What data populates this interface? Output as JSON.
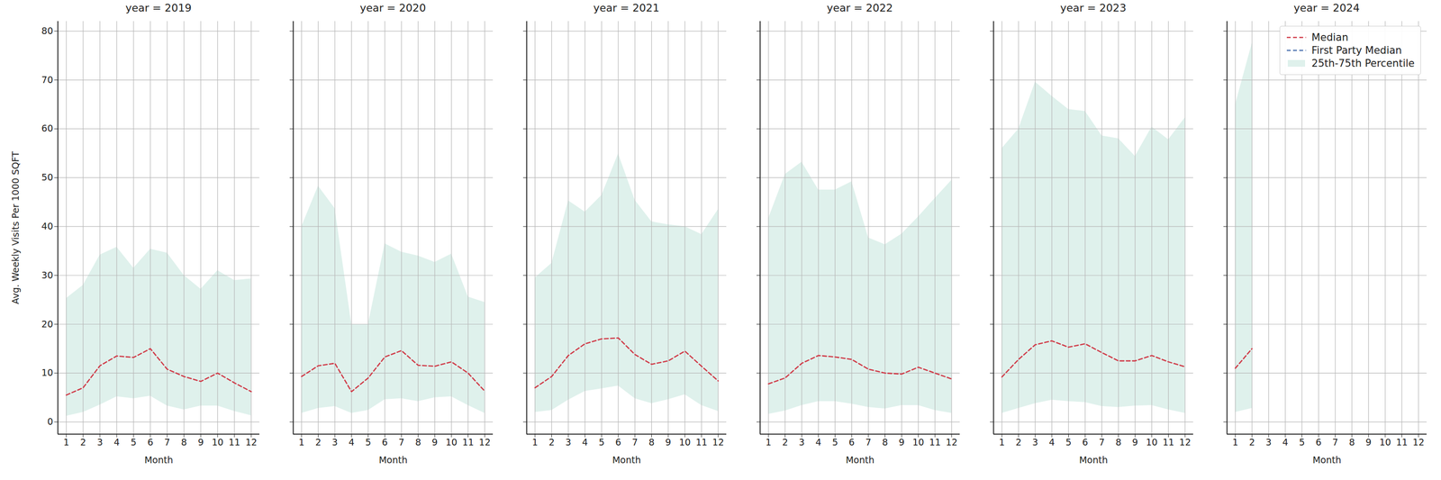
{
  "chart_data": [
    {
      "type": "line",
      "title": "year = 2019",
      "x_label": "Month",
      "y_label": "Avg. Weekly Visits Per 1000 SQFT",
      "tick_labels": true,
      "x": [
        1,
        2,
        3,
        4,
        5,
        6,
        7,
        8,
        9,
        10,
        11,
        12
      ],
      "xlim": [
        0.5,
        12.5
      ],
      "xticks": [
        1,
        2,
        3,
        4,
        5,
        6,
        7,
        8,
        9,
        10,
        11,
        12
      ],
      "ylim": [
        -2.5,
        82
      ],
      "yticks": [
        0,
        10,
        20,
        30,
        40,
        50,
        60,
        70,
        80
      ],
      "grid": true,
      "series": [
        {
          "name": "Median",
          "color": "#d03b48",
          "line_style": "dashed",
          "values": [
            5.5,
            7,
            11.5,
            13.5,
            13.2,
            15,
            10.8,
            9.3,
            8.3,
            10,
            8,
            6.2
          ]
        },
        {
          "name": "First Party Median",
          "color": "#4c72b0",
          "line_style": "dashed",
          "values": [
            null,
            null,
            null,
            null,
            null,
            null,
            null,
            null,
            null,
            null,
            null,
            null
          ]
        },
        {
          "name": "25th-75th Percentile",
          "type": "area",
          "color": "#dff1ec",
          "lower": [
            1.2,
            2,
            3.5,
            5.2,
            4.8,
            5.3,
            3.3,
            2.5,
            3.3,
            3.3,
            2.2,
            1.3
          ],
          "upper": [
            25.3,
            28,
            34.2,
            35.8,
            31.5,
            35.4,
            34.6,
            30,
            27.2,
            31,
            29,
            29.3
          ]
        }
      ]
    },
    {
      "type": "line",
      "title": "year = 2020",
      "x_label": "Month",
      "tick_labels": "x",
      "x": [
        1,
        2,
        3,
        4,
        5,
        6,
        7,
        8,
        9,
        10,
        11,
        12
      ],
      "xlim": [
        0.5,
        12.5
      ],
      "xticks": [
        1,
        2,
        3,
        4,
        5,
        6,
        7,
        8,
        9,
        10,
        11,
        12
      ],
      "ylim": [
        -2.5,
        82
      ],
      "yticks": [
        0,
        10,
        20,
        30,
        40,
        50,
        60,
        70,
        80
      ],
      "grid": true,
      "series": [
        {
          "name": "Median",
          "color": "#d03b48",
          "line_style": "dashed",
          "values": [
            9.3,
            11.5,
            12,
            6.2,
            9,
            13.3,
            14.6,
            11.6,
            11.4,
            12.3,
            10,
            6.3
          ]
        },
        {
          "name": "First Party Median",
          "color": "#4c72b0",
          "line_style": "dashed",
          "values": [
            null,
            null,
            null,
            null,
            null,
            null,
            null,
            null,
            null,
            null,
            null,
            null
          ]
        },
        {
          "name": "25th-75th Percentile",
          "type": "area",
          "color": "#dff1ec",
          "lower": [
            1.8,
            2.8,
            3.2,
            1.8,
            2.4,
            4.6,
            4.8,
            4.2,
            5,
            5.2,
            3.4,
            1.8
          ],
          "upper": [
            40,
            48.3,
            43.7,
            20,
            20,
            36.5,
            34.8,
            34,
            32.7,
            34.4,
            25.6,
            24.5
          ]
        }
      ]
    },
    {
      "type": "line",
      "title": "year = 2021",
      "x_label": "Month",
      "tick_labels": "x",
      "x": [
        1,
        2,
        3,
        4,
        5,
        6,
        7,
        8,
        9,
        10,
        11,
        12
      ],
      "xlim": [
        0.5,
        12.5
      ],
      "xticks": [
        1,
        2,
        3,
        4,
        5,
        6,
        7,
        8,
        9,
        10,
        11,
        12
      ],
      "ylim": [
        -2.5,
        82
      ],
      "yticks": [
        0,
        10,
        20,
        30,
        40,
        50,
        60,
        70,
        80
      ],
      "grid": true,
      "series": [
        {
          "name": "Median",
          "color": "#d03b48",
          "line_style": "dashed",
          "values": [
            7,
            9.3,
            13.6,
            16,
            17,
            17.2,
            13.8,
            11.8,
            12.5,
            14.5,
            11.4,
            8.4
          ]
        },
        {
          "name": "First Party Median",
          "color": "#4c72b0",
          "line_style": "dashed",
          "values": [
            null,
            null,
            null,
            null,
            null,
            null,
            null,
            null,
            null,
            null,
            null,
            null
          ]
        },
        {
          "name": "25th-75th Percentile",
          "type": "area",
          "color": "#dff1ec",
          "lower": [
            2,
            2.4,
            4.5,
            6.3,
            6.8,
            7.4,
            4.8,
            3.8,
            4.6,
            5.6,
            3.4,
            2.2
          ],
          "upper": [
            29.5,
            32.5,
            45.3,
            43,
            46.4,
            54.9,
            45.4,
            41,
            40.4,
            40,
            38.4,
            43.5
          ]
        }
      ]
    },
    {
      "type": "line",
      "title": "year = 2022",
      "x_label": "Month",
      "tick_labels": "x",
      "x": [
        1,
        2,
        3,
        4,
        5,
        6,
        7,
        8,
        9,
        10,
        11,
        12
      ],
      "xlim": [
        0.5,
        12.5
      ],
      "xticks": [
        1,
        2,
        3,
        4,
        5,
        6,
        7,
        8,
        9,
        10,
        11,
        12
      ],
      "ylim": [
        -2.5,
        82
      ],
      "yticks": [
        0,
        10,
        20,
        30,
        40,
        50,
        60,
        70,
        80
      ],
      "grid": true,
      "series": [
        {
          "name": "Median",
          "color": "#d03b48",
          "line_style": "dashed",
          "values": [
            7.8,
            9,
            12,
            13.6,
            13.3,
            12.8,
            10.8,
            10,
            9.8,
            11.2,
            10,
            8.8
          ]
        },
        {
          "name": "First Party Median",
          "color": "#4c72b0",
          "line_style": "dashed",
          "values": [
            null,
            null,
            null,
            null,
            null,
            null,
            null,
            null,
            null,
            null,
            null,
            null
          ]
        },
        {
          "name": "25th-75th Percentile",
          "type": "area",
          "color": "#dff1ec",
          "lower": [
            1.6,
            2.3,
            3.4,
            4.2,
            4.2,
            3.7,
            3,
            2.7,
            3.4,
            3.4,
            2.4,
            1.8
          ],
          "upper": [
            41.7,
            50.7,
            53.2,
            47.5,
            47.5,
            49.2,
            37.7,
            36.3,
            38.5,
            42,
            45.8,
            49.5
          ]
        }
      ]
    },
    {
      "type": "line",
      "title": "year = 2023",
      "x_label": "Month",
      "tick_labels": "x",
      "x": [
        1,
        2,
        3,
        4,
        5,
        6,
        7,
        8,
        9,
        10,
        11,
        12
      ],
      "xlim": [
        0.5,
        12.5
      ],
      "xticks": [
        1,
        2,
        3,
        4,
        5,
        6,
        7,
        8,
        9,
        10,
        11,
        12
      ],
      "ylim": [
        -2.5,
        82
      ],
      "yticks": [
        0,
        10,
        20,
        30,
        40,
        50,
        60,
        70,
        80
      ],
      "grid": true,
      "series": [
        {
          "name": "Median",
          "color": "#d03b48",
          "line_style": "dashed",
          "values": [
            9.2,
            12.8,
            15.8,
            16.6,
            15.3,
            16,
            14.2,
            12.5,
            12.5,
            13.6,
            12.3,
            11.3
          ]
        },
        {
          "name": "First Party Median",
          "color": "#4c72b0",
          "line_style": "dashed",
          "values": [
            null,
            null,
            null,
            null,
            null,
            null,
            null,
            null,
            null,
            null,
            null,
            null
          ]
        },
        {
          "name": "25th-75th Percentile",
          "type": "area",
          "color": "#dff1ec",
          "lower": [
            1.8,
            2.8,
            3.8,
            4.5,
            4.2,
            4,
            3.2,
            3,
            3.3,
            3.4,
            2.5,
            1.8
          ],
          "upper": [
            56,
            60,
            69.6,
            66.7,
            64,
            63.6,
            58.6,
            58,
            54.4,
            60.4,
            57.8,
            62.3
          ]
        }
      ]
    },
    {
      "type": "line",
      "title": "year = 2024",
      "x_label": "Month",
      "tick_labels": "x",
      "legend": "upper right",
      "x": [
        1,
        2,
        3,
        4,
        5,
        6,
        7,
        8,
        9,
        10,
        11,
        12
      ],
      "xlim": [
        0.5,
        12.5
      ],
      "xticks": [
        1,
        2,
        3,
        4,
        5,
        6,
        7,
        8,
        9,
        10,
        11,
        12
      ],
      "ylim": [
        -2.5,
        82
      ],
      "yticks": [
        0,
        10,
        20,
        30,
        40,
        50,
        60,
        70,
        80
      ],
      "grid": true,
      "series": [
        {
          "name": "Median",
          "color": "#d03b48",
          "line_style": "dashed",
          "values": [
            11,
            15,
            null,
            null,
            null,
            null,
            null,
            null,
            null,
            null,
            null,
            null
          ]
        },
        {
          "name": "First Party Median",
          "color": "#4c72b0",
          "line_style": "dashed",
          "values": [
            null,
            null,
            null,
            null,
            null,
            null,
            null,
            null,
            null,
            null,
            null,
            null
          ]
        },
        {
          "name": "25th-75th Percentile",
          "type": "area",
          "color": "#dff1ec",
          "lower": [
            2,
            2.8,
            null,
            null,
            null,
            null,
            null,
            null,
            null,
            null,
            null,
            null
          ],
          "upper": [
            65,
            77.5,
            null,
            null,
            null,
            null,
            null,
            null,
            null,
            null,
            null,
            null
          ]
        }
      ]
    }
  ]
}
